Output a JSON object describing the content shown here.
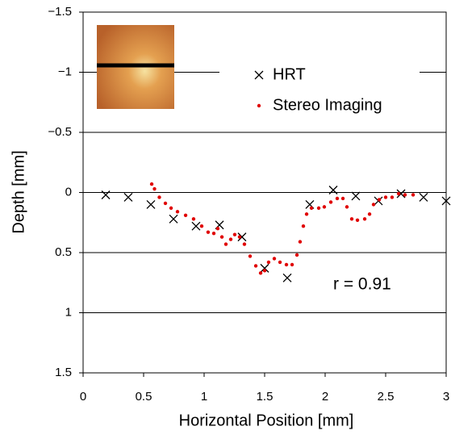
{
  "chart_data": {
    "type": "scatter",
    "x_label": "Horizontal Position [mm]",
    "y_label": "Depth [mm]",
    "annotation": "r = 0.91",
    "xlim": [
      0,
      3
    ],
    "xticks": [
      0,
      0.5,
      1,
      1.5,
      2,
      2.5,
      3
    ],
    "ylim": [
      -1.5,
      1.5
    ],
    "invert_y": true,
    "grid": true,
    "yticks": [
      {
        "value": -1.5,
        "label": "−1.5"
      },
      {
        "value": -1,
        "label": "−1"
      },
      {
        "value": -0.5,
        "label": "−0.5"
      },
      0,
      0.5,
      1,
      1.5
    ],
    "series": [
      {
        "name": "HRT",
        "color": "#000000",
        "marker": "x",
        "x": [
          0.187,
          0.373,
          0.56,
          0.747,
          0.933,
          1.127,
          1.313,
          1.5,
          1.687,
          1.873,
          2.067,
          2.253,
          2.44,
          2.627,
          2.813,
          3.0
        ],
        "values": [
          0.02,
          0.04,
          0.1,
          0.22,
          0.28,
          0.27,
          0.37,
          0.63,
          0.71,
          0.1,
          -0.02,
          0.03,
          0.07,
          0.01,
          0.04,
          0.07
        ]
      },
      {
        "name": "Stereo Imaging",
        "color": "#e00000",
        "marker": "dot",
        "x": [
          0.567,
          0.59,
          0.63,
          0.68,
          0.727,
          0.78,
          0.847,
          0.913,
          0.98,
          1.033,
          1.08,
          1.113,
          1.147,
          1.18,
          1.22,
          1.253,
          1.293,
          1.333,
          1.38,
          1.427,
          1.467,
          1.5,
          1.533,
          1.58,
          1.627,
          1.68,
          1.727,
          1.767,
          1.793,
          1.82,
          1.847,
          1.887,
          1.947,
          1.993,
          2.047,
          2.1,
          2.147,
          2.18,
          2.22,
          2.267,
          2.327,
          2.367,
          2.4,
          2.447,
          2.5,
          2.553,
          2.607,
          2.66,
          2.727
        ],
        "values": [
          -0.07,
          -0.03,
          0.04,
          0.09,
          0.13,
          0.16,
          0.19,
          0.22,
          0.28,
          0.33,
          0.34,
          0.3,
          0.37,
          0.43,
          0.39,
          0.35,
          0.37,
          0.43,
          0.53,
          0.61,
          0.67,
          0.65,
          0.58,
          0.55,
          0.58,
          0.6,
          0.6,
          0.52,
          0.41,
          0.28,
          0.18,
          0.13,
          0.13,
          0.12,
          0.08,
          0.05,
          0.05,
          0.12,
          0.22,
          0.23,
          0.22,
          0.18,
          0.1,
          0.06,
          0.04,
          0.04,
          0.01,
          0.02,
          0.02
        ]
      }
    ]
  }
}
